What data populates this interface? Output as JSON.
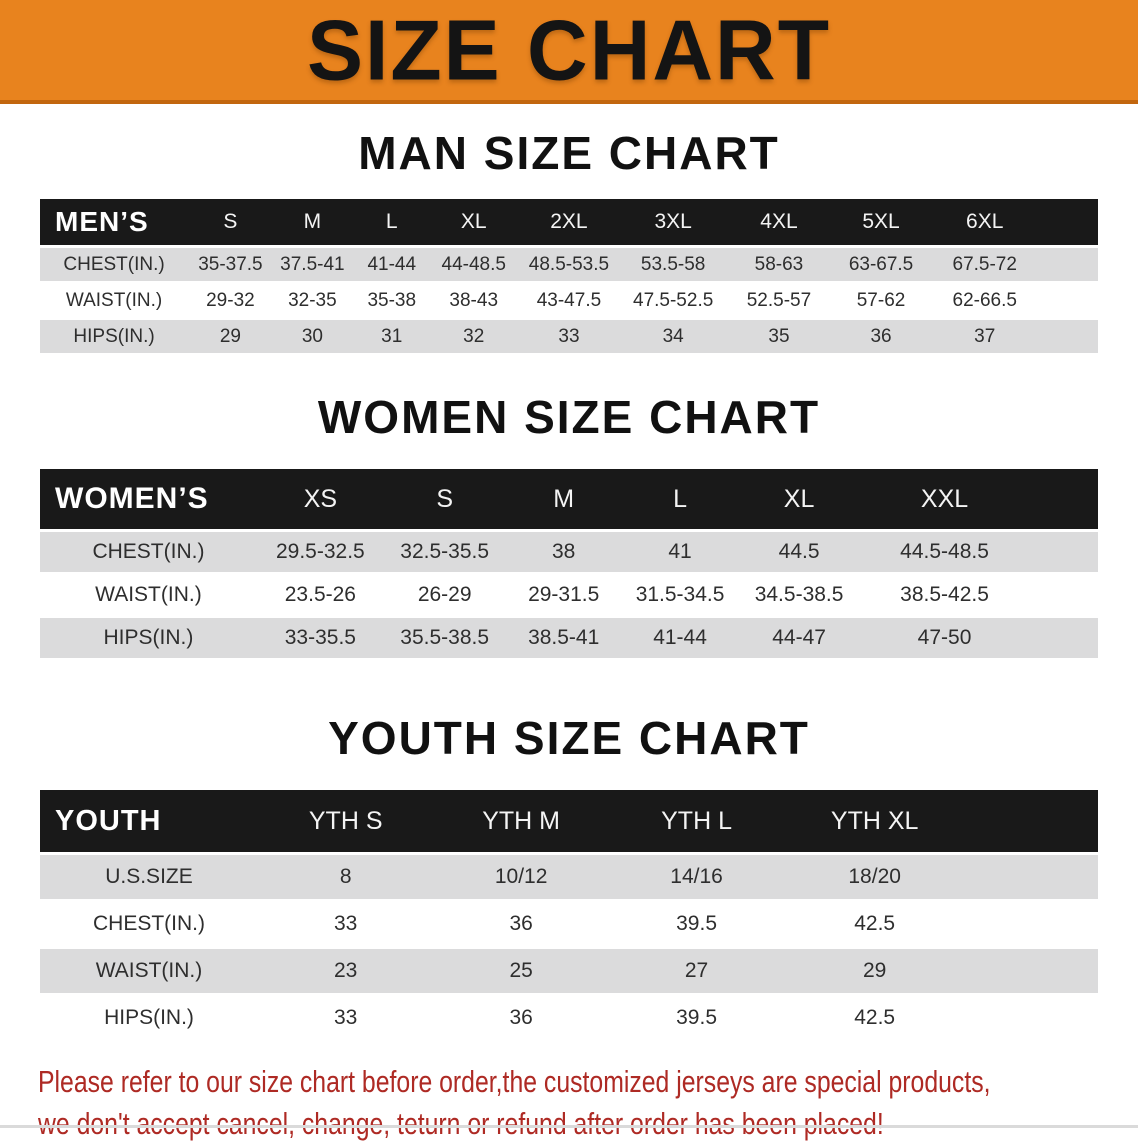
{
  "banner": {
    "title": "SIZE CHART",
    "bg_color": "#E8831E",
    "text_color": "#141414"
  },
  "sections": [
    {
      "id": "men",
      "heading": "MAN SIZE CHART",
      "label": "MEN’S",
      "columns": [
        "S",
        "M",
        "L",
        "XL",
        "2XL",
        "3XL",
        "4XL",
        "5XL",
        "6XL"
      ],
      "rows": [
        {
          "label": "CHEST(IN.)",
          "values": [
            "35-37.5",
            "37.5-41",
            "41-44",
            "44-48.5",
            "48.5-53.5",
            "53.5-58",
            "58-63",
            "63-67.5",
            "67.5-72"
          ]
        },
        {
          "label": "WAIST(IN.)",
          "values": [
            "29-32",
            "32-35",
            "35-38",
            "38-43",
            "43-47.5",
            "47.5-52.5",
            "52.5-57",
            "57-62",
            "62-66.5"
          ]
        },
        {
          "label": "HIPS(IN.)",
          "values": [
            "29",
            "30",
            "31",
            "32",
            "33",
            "34",
            "35",
            "36",
            "37"
          ]
        }
      ]
    },
    {
      "id": "women",
      "heading": "WOMEN SIZE CHART",
      "label": "WOMEN’S",
      "columns": [
        "XS",
        "S",
        "M",
        "L",
        "XL",
        "XXL"
      ],
      "rows": [
        {
          "label": "CHEST(IN.)",
          "values": [
            "29.5-32.5",
            "32.5-35.5",
            "38",
            "41",
            "44.5",
            "44.5-48.5"
          ]
        },
        {
          "label": "WAIST(IN.)",
          "values": [
            "23.5-26",
            "26-29",
            "29-31.5",
            "31.5-34.5",
            "34.5-38.5",
            "38.5-42.5"
          ]
        },
        {
          "label": "HIPS(IN.)",
          "values": [
            "33-35.5",
            "35.5-38.5",
            "38.5-41",
            "41-44",
            "44-47",
            "47-50"
          ]
        }
      ]
    },
    {
      "id": "youth",
      "heading": "YOUTH SIZE CHART",
      "label": "YOUTH",
      "columns": [
        "YTH S",
        "YTH M",
        "YTH L",
        "YTH XL"
      ],
      "rows": [
        {
          "label": "U.S.SIZE",
          "values": [
            "8",
            "10/12",
            "14/16",
            "18/20"
          ]
        },
        {
          "label": "CHEST(IN.)",
          "values": [
            "33",
            "36",
            "39.5",
            "42.5"
          ]
        },
        {
          "label": "WAIST(IN.)",
          "values": [
            "23",
            "25",
            "27",
            "29"
          ]
        },
        {
          "label": "HIPS(IN.)",
          "values": [
            "33",
            "36",
            "39.5",
            "42.5"
          ]
        }
      ]
    }
  ],
  "disclaimer": {
    "line1": "Please refer to our size chart before order,the customized jerseys are special products,",
    "line2": "we don't accept cancel, change, teturn or refund after order has been placed!",
    "color": "#AE2A24"
  },
  "colors": {
    "header_bar": "#191919",
    "row_stripe": "#DBDBDC",
    "banner_orange": "#E8831E"
  }
}
